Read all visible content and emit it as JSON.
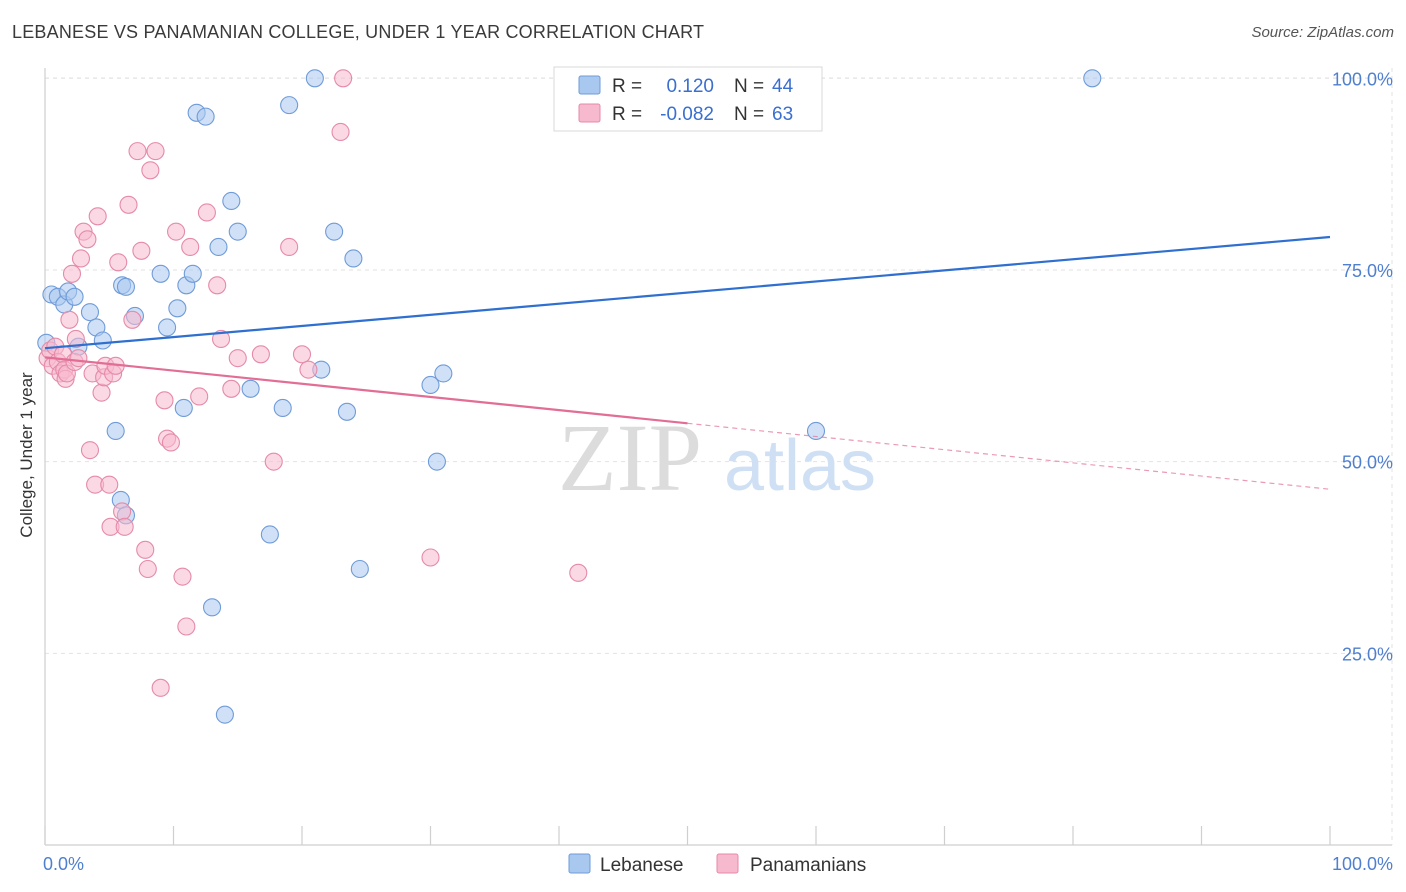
{
  "title": "LEBANESE VS PANAMANIAN COLLEGE, UNDER 1 YEAR CORRELATION CHART",
  "source": "Source: ZipAtlas.com",
  "watermark": {
    "zip": "ZIP",
    "atlas": "atlas"
  },
  "colors": {
    "lebanese_fill": "#a9c8f0",
    "lebanese_stroke": "#6f9bd8",
    "lebanese_line": "#2f6fcf",
    "panamanian_fill": "#f7b9cd",
    "panamanian_stroke": "#e58aa8",
    "panamanian_line": "#e26d95",
    "grid": "#e2e2e2",
    "axis_label": "#4f7fcf"
  },
  "legend": {
    "rows": [
      {
        "r_label": "R =",
        "r_value": "0.120",
        "n_label": "N =",
        "n_value": "44",
        "color": "#a9c8f0",
        "stroke": "#6f9bd8"
      },
      {
        "r_label": "R =",
        "r_value": "-0.082",
        "n_label": "N =",
        "n_value": "63",
        "color": "#f7b9cd",
        "stroke": "#e58aa8"
      }
    ]
  },
  "bottom_legend": [
    {
      "label": "Lebanese",
      "color": "#a9c8f0",
      "stroke": "#6f9bd8"
    },
    {
      "label": "Panamanians",
      "color": "#f7b9cd",
      "stroke": "#e58aa8"
    }
  ],
  "chart_data": {
    "type": "scatter",
    "title": "LEBANESE VS PANAMANIAN COLLEGE, UNDER 1 YEAR CORRELATION CHART",
    "xlabel": "",
    "ylabel": "College, Under 1 year",
    "xlim": [
      0,
      100
    ],
    "ylim": [
      0,
      105
    ],
    "x_tick_labels": [
      "0.0%",
      "100.0%"
    ],
    "y_ticks": [
      25,
      50,
      75,
      100
    ],
    "y_tick_labels": [
      "25.0%",
      "50.0%",
      "75.0%",
      "100.0%"
    ],
    "grid": true,
    "series": [
      {
        "name": "Lebanese",
        "R": 0.12,
        "N": 44,
        "trend": {
          "x": [
            0,
            100
          ],
          "y": [
            64.8,
            79.3
          ],
          "dashed_from": null
        },
        "points": [
          [
            0.1,
            65.5
          ],
          [
            0.5,
            71.8
          ],
          [
            1.0,
            71.5
          ],
          [
            1.5,
            70.5
          ],
          [
            1.8,
            72.2
          ],
          [
            2.3,
            71.5
          ],
          [
            2.6,
            65.0
          ],
          [
            3.5,
            69.5
          ],
          [
            4.0,
            67.5
          ],
          [
            4.5,
            65.8
          ],
          [
            6.0,
            73.0
          ],
          [
            6.3,
            72.8
          ],
          [
            5.5,
            54.0
          ],
          [
            5.9,
            45.0
          ],
          [
            6.3,
            43.0
          ],
          [
            7.0,
            69.0
          ],
          [
            9.0,
            74.5
          ],
          [
            9.5,
            67.5
          ],
          [
            10.3,
            70.0
          ],
          [
            10.8,
            57.0
          ],
          [
            11.0,
            73.0
          ],
          [
            11.5,
            74.5
          ],
          [
            13.0,
            31.0
          ],
          [
            13.5,
            78.0
          ],
          [
            14.0,
            17.0
          ],
          [
            11.8,
            95.5
          ],
          [
            12.5,
            95.0
          ],
          [
            15.0,
            80.0
          ],
          [
            14.5,
            84.0
          ],
          [
            16.0,
            59.5
          ],
          [
            17.5,
            40.5
          ],
          [
            18.5,
            57.0
          ],
          [
            19.0,
            96.5
          ],
          [
            21.5,
            62.0
          ],
          [
            21.0,
            100.0
          ],
          [
            22.5,
            80.0
          ],
          [
            23.5,
            56.5
          ],
          [
            24.5,
            36.0
          ],
          [
            24.0,
            76.5
          ],
          [
            30.5,
            50.0
          ],
          [
            30.0,
            60.0
          ],
          [
            31.0,
            61.5
          ],
          [
            60.0,
            54.0
          ],
          [
            81.5,
            100.0
          ]
        ]
      },
      {
        "name": "Panamanians",
        "R": -0.082,
        "N": 63,
        "trend": {
          "x": [
            0,
            100
          ],
          "y": [
            63.6,
            46.4
          ],
          "dashed_from": 50
        },
        "points": [
          [
            0.2,
            63.5
          ],
          [
            0.4,
            64.5
          ],
          [
            0.6,
            62.5
          ],
          [
            0.8,
            65.0
          ],
          [
            1.0,
            63.0
          ],
          [
            1.2,
            61.5
          ],
          [
            1.4,
            64.0
          ],
          [
            1.5,
            62.0
          ],
          [
            1.6,
            60.8
          ],
          [
            1.7,
            61.5
          ],
          [
            1.9,
            68.5
          ],
          [
            2.1,
            74.5
          ],
          [
            2.3,
            63.0
          ],
          [
            2.4,
            66.0
          ],
          [
            2.6,
            63.5
          ],
          [
            2.8,
            76.5
          ],
          [
            3.0,
            80.0
          ],
          [
            3.3,
            79.0
          ],
          [
            3.5,
            51.5
          ],
          [
            3.7,
            61.5
          ],
          [
            3.9,
            47.0
          ],
          [
            4.1,
            82.0
          ],
          [
            4.4,
            59.0
          ],
          [
            4.6,
            61.0
          ],
          [
            4.7,
            62.5
          ],
          [
            5.0,
            47.0
          ],
          [
            5.1,
            41.5
          ],
          [
            5.3,
            61.5
          ],
          [
            5.5,
            62.5
          ],
          [
            5.7,
            76.0
          ],
          [
            6.0,
            43.5
          ],
          [
            6.2,
            41.5
          ],
          [
            6.5,
            83.5
          ],
          [
            6.8,
            68.5
          ],
          [
            7.2,
            90.5
          ],
          [
            7.5,
            77.5
          ],
          [
            7.8,
            38.5
          ],
          [
            8.0,
            36.0
          ],
          [
            8.2,
            88.0
          ],
          [
            8.6,
            90.5
          ],
          [
            9.0,
            20.5
          ],
          [
            9.3,
            58.0
          ],
          [
            9.5,
            53.0
          ],
          [
            9.8,
            52.5
          ],
          [
            10.2,
            80.0
          ],
          [
            10.7,
            35.0
          ],
          [
            11.0,
            28.5
          ],
          [
            11.3,
            78.0
          ],
          [
            12.0,
            58.5
          ],
          [
            12.6,
            82.5
          ],
          [
            13.4,
            73.0
          ],
          [
            13.7,
            66.0
          ],
          [
            14.5,
            59.5
          ],
          [
            15.0,
            63.5
          ],
          [
            16.8,
            64.0
          ],
          [
            17.8,
            50.0
          ],
          [
            19.0,
            78.0
          ],
          [
            20.0,
            64.0
          ],
          [
            20.5,
            62.0
          ],
          [
            23.0,
            93.0
          ],
          [
            23.2,
            100.0
          ],
          [
            30.0,
            37.5
          ],
          [
            41.5,
            35.5
          ]
        ]
      }
    ]
  }
}
